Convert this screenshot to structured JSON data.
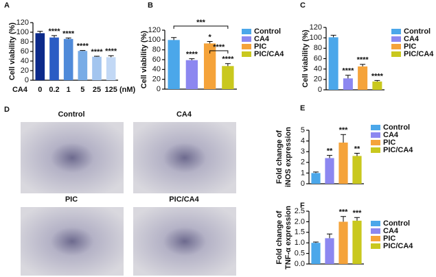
{
  "chart_data": [
    {
      "type": "bar",
      "panel": "A",
      "ylabel": [
        "Cell viability (%)"
      ],
      "xlabel": "CA4",
      "xunit": "(nM)",
      "categories": [
        "0",
        "0.2",
        "1",
        "5",
        "25",
        "125"
      ],
      "values": [
        98,
        89,
        86,
        61,
        49,
        48
      ],
      "errors": [
        4,
        4,
        2,
        1,
        1,
        3
      ],
      "value_labels": [
        null,
        "****",
        "****",
        "****",
        "****",
        "****"
      ],
      "colors": [
        "#0c2a8a",
        "#2b5cc4",
        "#4f8ad9",
        "#78ace6",
        "#a3c5ef",
        "#c2d8f5"
      ],
      "ylim": [
        0,
        120
      ],
      "yticks": [
        0,
        20,
        40,
        60,
        80,
        100,
        120
      ],
      "legend": false
    },
    {
      "type": "bar",
      "panel": "B",
      "ylabel": [
        "Cell viability (%)"
      ],
      "categories": [
        "Control",
        "CA4",
        "PIC",
        "PIC/CA4"
      ],
      "values": [
        100,
        59,
        93,
        47
      ],
      "errors": [
        5,
        3,
        4,
        5
      ],
      "value_labels": [
        null,
        "****",
        "*",
        "****"
      ],
      "brackets": [
        {
          "from": 0,
          "to": 3,
          "label": "***"
        },
        {
          "from": 2,
          "to": 3,
          "label": "****"
        }
      ],
      "colors": [
        "#4ba7ea",
        "#8c87f0",
        "#f5a33a",
        "#c9c81e"
      ],
      "ylim": [
        0,
        120
      ],
      "yticks": [
        0,
        20,
        40,
        60,
        80,
        100,
        120
      ],
      "legend": true
    },
    {
      "type": "bar",
      "panel": "C",
      "ylabel": [
        "Cell viability (%)"
      ],
      "categories": [
        "Control",
        "CA4",
        "PIC",
        "PIC/CA4"
      ],
      "values": [
        101,
        22,
        45,
        16
      ],
      "errors": [
        4,
        6,
        4,
        2
      ],
      "value_labels": [
        null,
        "****",
        "****",
        "****"
      ],
      "colors": [
        "#4ba7ea",
        "#8c87f0",
        "#f5a33a",
        "#c9c81e"
      ],
      "ylim": [
        0,
        120
      ],
      "yticks": [
        0,
        20,
        40,
        60,
        80,
        100,
        120
      ],
      "legend": true
    },
    {
      "type": "bar",
      "panel": "E",
      "ylabel": [
        "Fold change of",
        "iNOS expression"
      ],
      "categories": [
        "Control",
        "CA4",
        "PIC",
        "PIC/CA4"
      ],
      "values": [
        1.0,
        2.4,
        3.85,
        2.6
      ],
      "errors": [
        0.1,
        0.25,
        0.75,
        0.25
      ],
      "value_labels": [
        null,
        "**",
        "***",
        "**"
      ],
      "colors": [
        "#4ba7ea",
        "#8c87f0",
        "#f5a33a",
        "#c9c81e"
      ],
      "ylim": [
        0,
        5
      ],
      "yticks": [
        0,
        1,
        2,
        3,
        4,
        5
      ],
      "legend": true
    },
    {
      "type": "bar",
      "panel": "F",
      "ylabel": [
        "Fold change of",
        "TNF-α expression"
      ],
      "categories": [
        "Control",
        "CA4",
        "PIC",
        "PIC/CA4"
      ],
      "values": [
        1.0,
        1.22,
        2.0,
        2.05
      ],
      "errors": [
        0.04,
        0.2,
        0.25,
        0.15
      ],
      "value_labels": [
        null,
        null,
        "***",
        "***"
      ],
      "colors": [
        "#4ba7ea",
        "#8c87f0",
        "#f5a33a",
        "#c9c81e"
      ],
      "ylim": [
        0,
        2.5
      ],
      "yticks": [
        {
          "value": 0,
          "label": "0.0"
        },
        0.5,
        {
          "value": 1,
          "label": "1.0"
        },
        1.5,
        {
          "value": 2,
          "label": "2.0"
        },
        2.5
      ],
      "legend": true
    }
  ],
  "figure_d": {
    "panel": "D",
    "labels": [
      "Control",
      "CA4",
      "PIC",
      "PIC/CA4"
    ]
  }
}
